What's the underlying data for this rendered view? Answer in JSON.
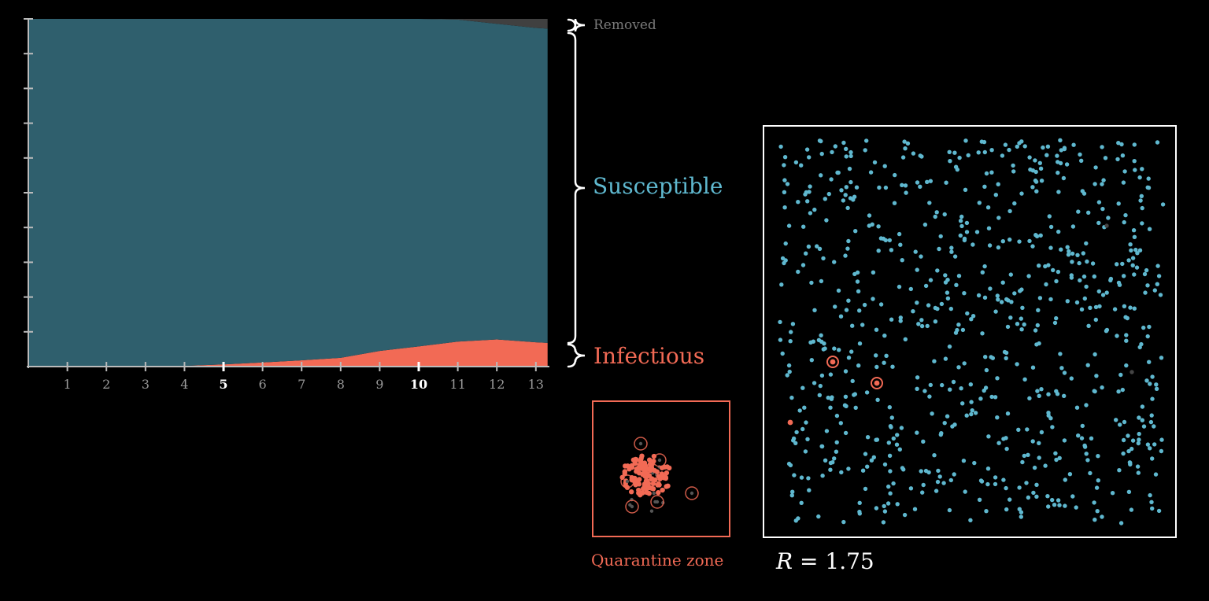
{
  "chart_data": {
    "type": "area",
    "stacked": true,
    "normalized": true,
    "x": [
      0,
      1,
      2,
      3,
      4,
      5,
      6,
      7,
      8,
      9,
      10,
      11,
      12,
      13,
      13.3
    ],
    "series": [
      {
        "name": "Infectious",
        "color": "#f26a55",
        "values": [
          0,
          0,
          0,
          0,
          0.002,
          0.006,
          0.012,
          0.018,
          0.025,
          0.045,
          0.058,
          0.072,
          0.078,
          0.07,
          0.068
        ]
      },
      {
        "name": "Susceptible",
        "color": "#2f5f6d",
        "values": [
          1,
          1,
          1,
          1,
          0.998,
          0.994,
          0.988,
          0.982,
          0.975,
          0.955,
          0.942,
          0.926,
          0.908,
          0.904,
          0.904
        ]
      },
      {
        "name": "Removed",
        "color": "#404040",
        "values": [
          0,
          0,
          0,
          0,
          0,
          0,
          0,
          0,
          0,
          0,
          0,
          0.002,
          0.014,
          0.026,
          0.028
        ]
      }
    ],
    "xticks": [
      "1",
      "2",
      "3",
      "4",
      "5",
      "6",
      "7",
      "8",
      "9",
      "10",
      "11",
      "12",
      "13"
    ],
    "highlighted_ticks": [
      "5",
      "10"
    ],
    "ylim": [
      0,
      1
    ],
    "y_tick_count": 10
  },
  "labels": {
    "removed": "Removed",
    "susceptible": "Susceptible",
    "infectious": "Infectious",
    "quarantine": "Quarantine zone",
    "r_symbol": "R",
    "r_equals": "=",
    "r_value": "1.75"
  },
  "colors": {
    "susceptible_dot": "#5fb8cf",
    "infectious": "#f26a55",
    "removed_dot": "#444444",
    "frame": "#ffffff"
  },
  "simulation": {
    "infectious_count_main": 3,
    "removed_count_main": 2
  }
}
